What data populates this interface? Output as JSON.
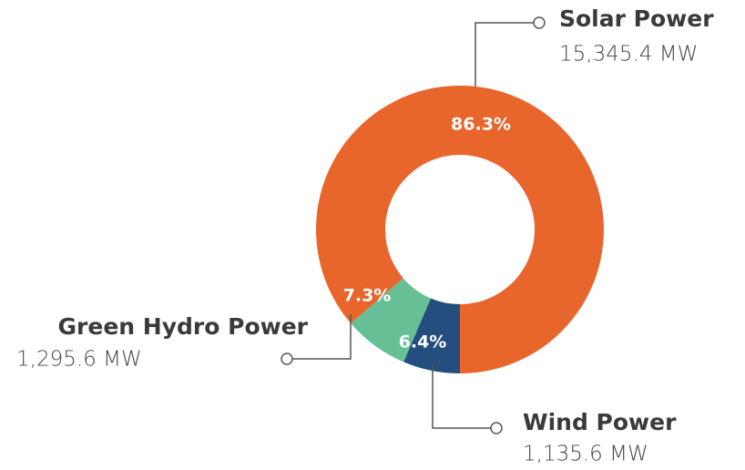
{
  "chart_data": {
    "type": "donut",
    "categories": [
      "Solar Power",
      "Wind Power",
      "Green Hydro Power"
    ],
    "values": [
      86.3,
      6.4,
      7.3
    ],
    "value_labels": [
      "86.3%",
      "6.4%",
      "7.3%"
    ],
    "amount_labels": [
      "15,345.4 MW",
      "1,135.6 MW",
      "1,295.6 MW"
    ],
    "colors": [
      "#e8652b",
      "#234e7e",
      "#66bf95"
    ]
  }
}
